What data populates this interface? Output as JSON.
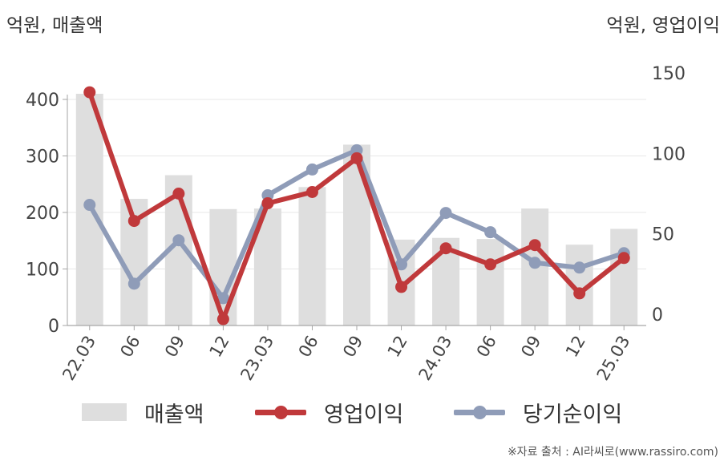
{
  "header": {
    "left_unit": "억원, 매출액",
    "right_unit": "억원, 영업이익"
  },
  "legend": {
    "revenue_label": "매출액",
    "op_label": "영업이익",
    "net_label": "당기순이익"
  },
  "source": "※자료 출처 : AI라씨로(www.rassiro.com)",
  "colors": {
    "revenue": "#dedede",
    "operating_profit": "#c0393b",
    "net_income": "#8f9cb8",
    "axis": "#a6a6a6",
    "grid": "#e7e7e7"
  },
  "chart_data": {
    "type": "bar",
    "categories": [
      "22.03",
      "06",
      "09",
      "12",
      "23.03",
      "06",
      "09",
      "12",
      "24.03",
      "06",
      "09",
      "12",
      "25.03"
    ],
    "series": [
      {
        "name": "매출액",
        "type": "bar",
        "axis": "left",
        "values": [
          410,
          224,
          266,
          206,
          207,
          245,
          320,
          152,
          155,
          153,
          207,
          143,
          171
        ]
      },
      {
        "name": "영업이익",
        "type": "line",
        "axis": "right",
        "values": [
          138,
          58,
          75,
          -3,
          69,
          76,
          97,
          17,
          41,
          31,
          43,
          13,
          35
        ]
      },
      {
        "name": "당기순이익",
        "type": "line",
        "axis": "right",
        "values": [
          68,
          19,
          46,
          10,
          74,
          90,
          102,
          31,
          63,
          51,
          32,
          29,
          38
        ]
      }
    ],
    "y_left": {
      "min": 0,
      "max": 400,
      "ticks": [
        0,
        100,
        200,
        300,
        400
      ]
    },
    "y_right": {
      "min": 0,
      "max": 150,
      "ticks": [
        0,
        50,
        100,
        150
      ]
    },
    "grid": true,
    "legend_position": "bottom"
  }
}
